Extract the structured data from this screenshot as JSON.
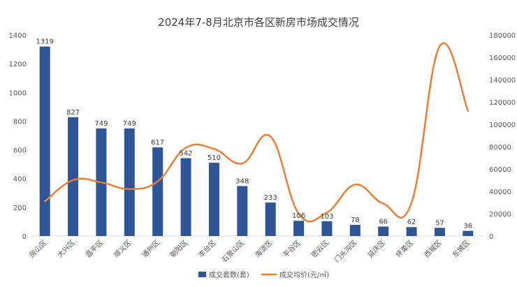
{
  "chart_data": {
    "type": "bar",
    "title": "2024年7-8月北京市各区新房市场成交情况",
    "categories": [
      "房山区",
      "大兴区",
      "昌平区",
      "顺义区",
      "通州区",
      "朝阳区",
      "丰台区",
      "石景山区",
      "海淀区",
      "平谷区",
      "密云区",
      "门头沟区",
      "延庆区",
      "怀柔区",
      "西城区",
      "东城区"
    ],
    "series": [
      {
        "name": "成交套数(套)",
        "type": "bar",
        "axis": "left",
        "color": "#2F5597",
        "values": [
          1319,
          827,
          749,
          749,
          617,
          542,
          510,
          348,
          233,
          106,
          103,
          78,
          66,
          62,
          57,
          36
        ],
        "data_labels": [
          "1319",
          "827",
          "749",
          "749",
          "617",
          "542",
          "510",
          "348",
          "233",
          "106",
          "103",
          "78",
          "66",
          "62",
          "57",
          "36"
        ]
      },
      {
        "name": "成交均价(元/㎡)",
        "type": "line",
        "axis": "right",
        "color": "#ED7D31",
        "values": [
          31000,
          50000,
          48000,
          42000,
          49000,
          79000,
          78000,
          65000,
          89000,
          20000,
          21000,
          46000,
          29000,
          30000,
          170000,
          112000
        ]
      }
    ],
    "y_left": {
      "min": 0,
      "max": 1400,
      "ticks": [
        "0",
        "200",
        "400",
        "600",
        "800",
        "1000",
        "1200",
        "1400"
      ]
    },
    "y_right": {
      "min": 0,
      "max": 180000,
      "ticks": [
        "0",
        "20000",
        "40000",
        "60000",
        "80000",
        "100000",
        "120000",
        "140000",
        "160000",
        "180000"
      ]
    },
    "grid": false,
    "legend": "bottom"
  }
}
